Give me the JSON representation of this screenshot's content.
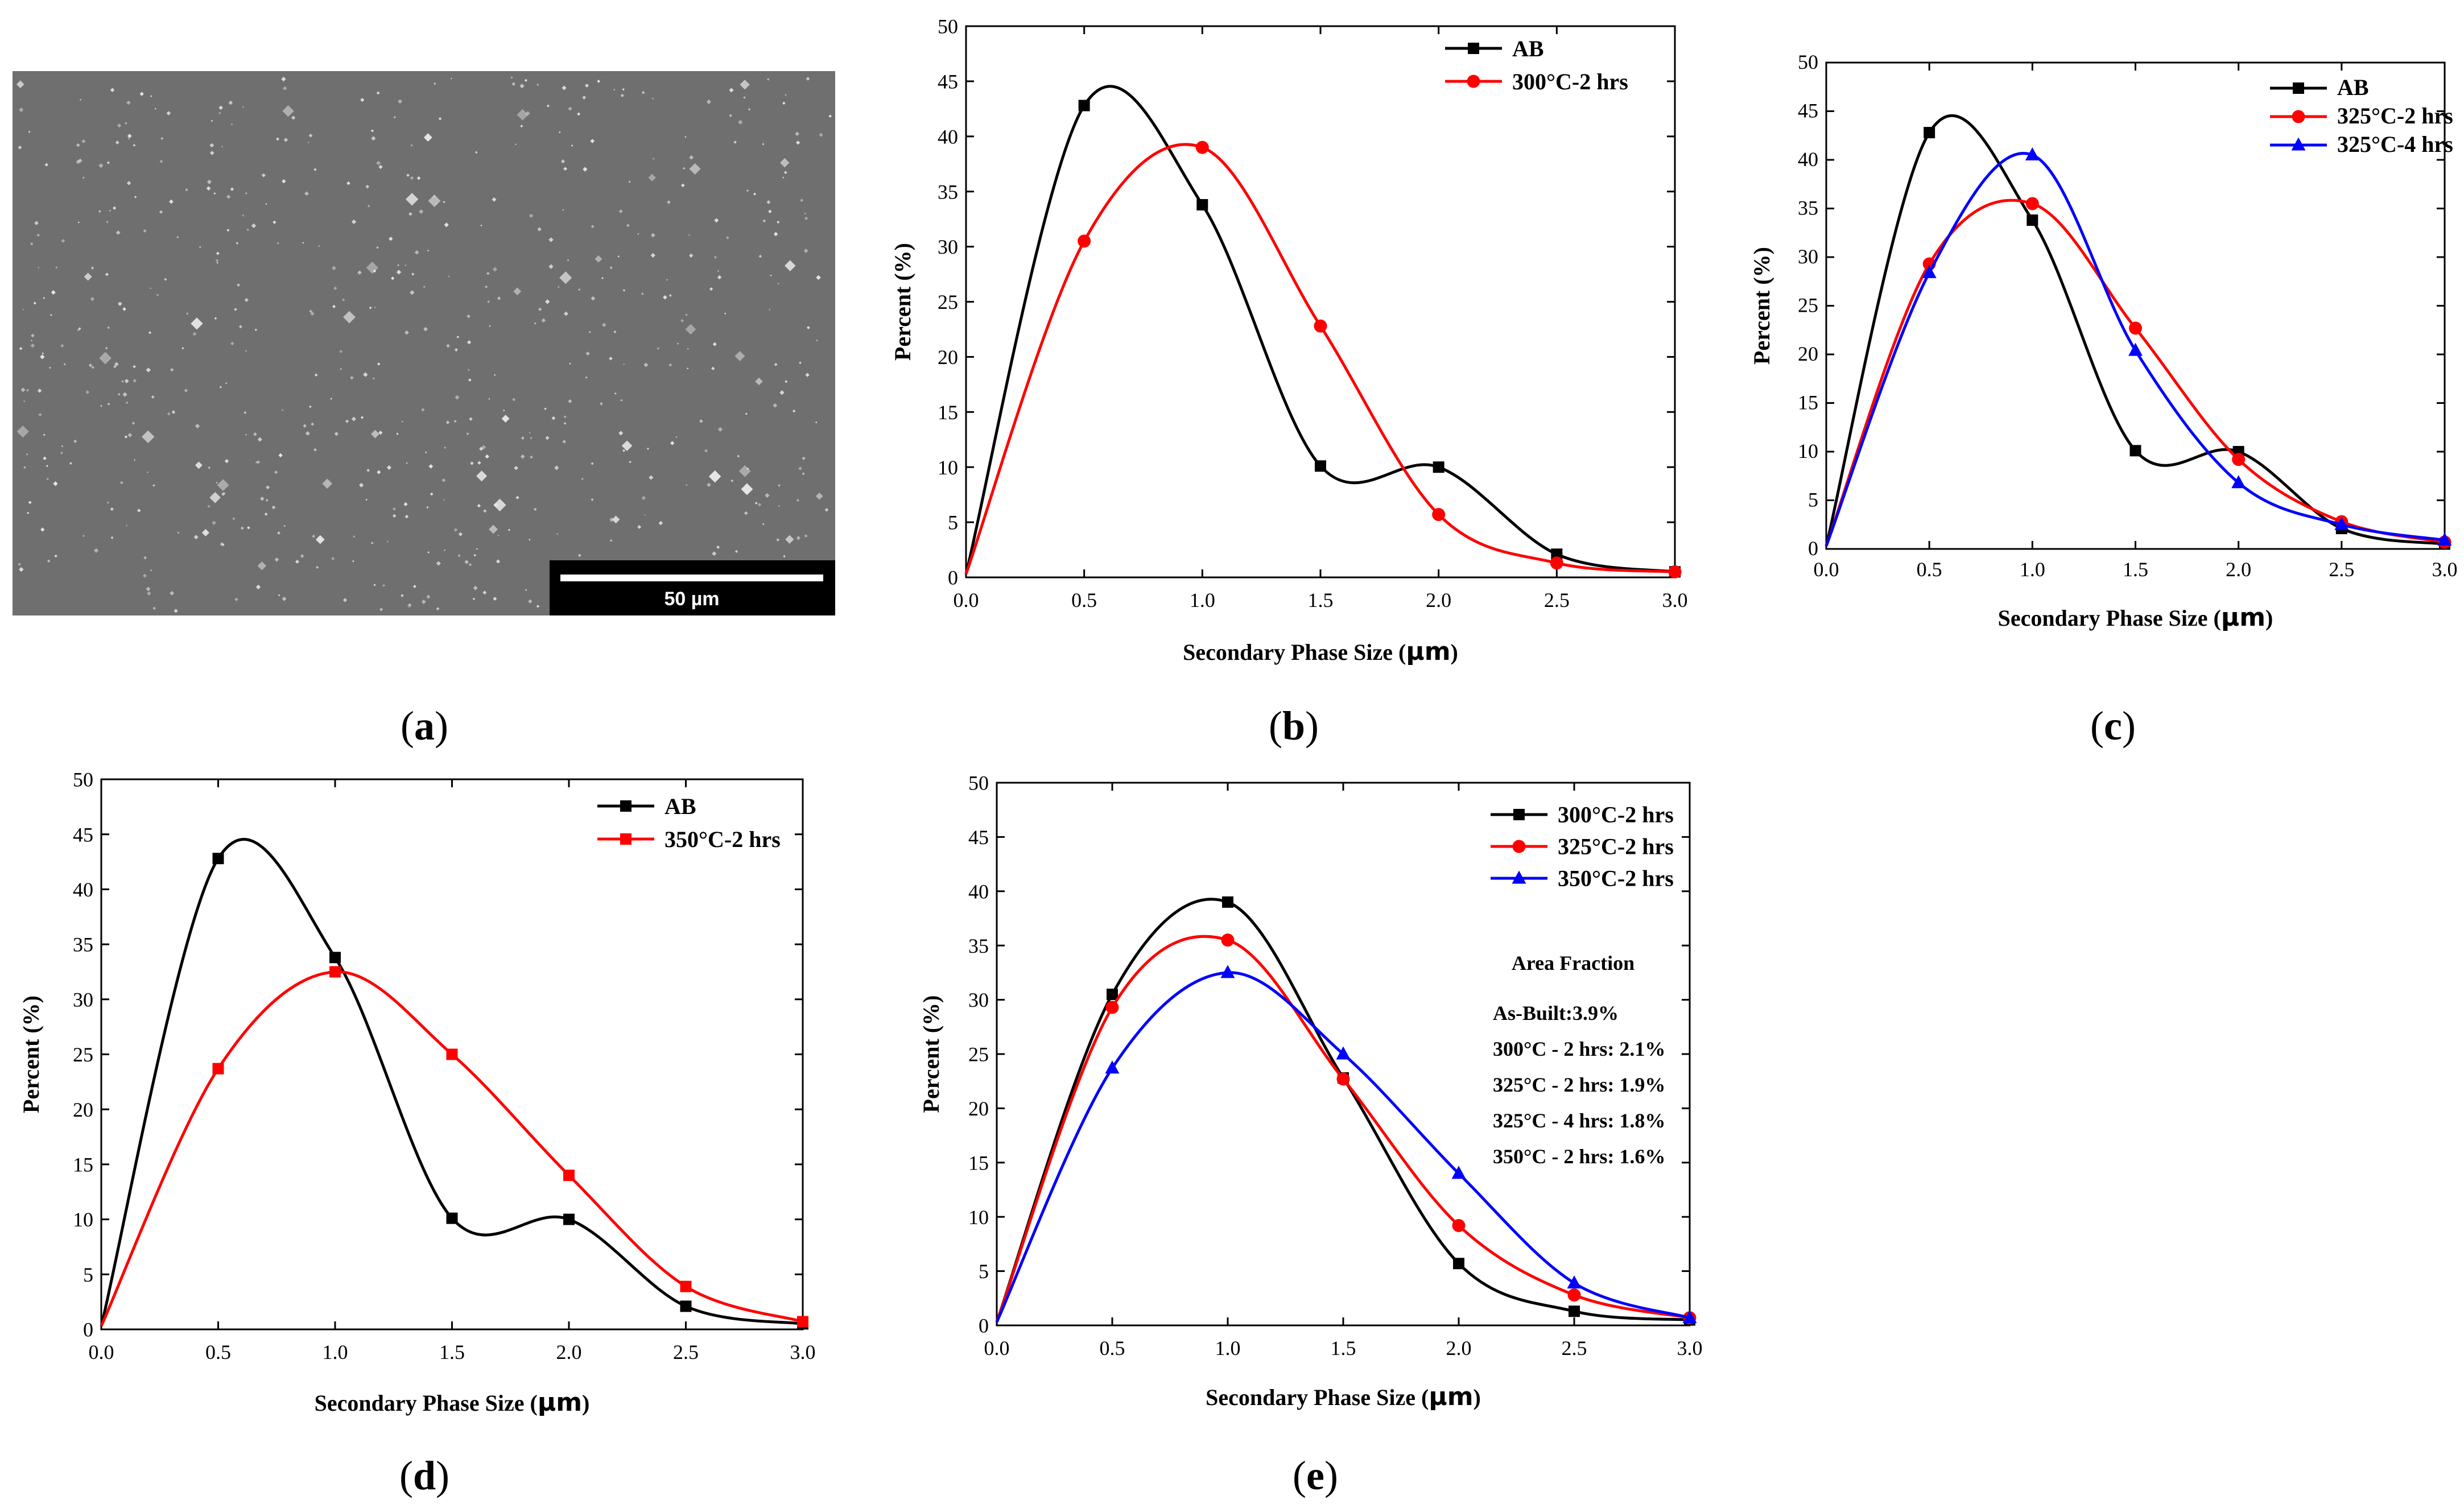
{
  "figure": {
    "panel_labels": [
      "a",
      "b",
      "c",
      "d",
      "e"
    ],
    "micrograph": {
      "scale_bar_label": "50 µm",
      "background_color": "#6f6f6f",
      "particle_color": "#e6e6e6"
    }
  },
  "chart_data": [
    {
      "id": "b",
      "type": "line",
      "xlabel": "Secondary Phase Size (",
      "xlabel_unit": "µm",
      "xlabel_end": ")",
      "ylabel": "Percent (%)",
      "xlim": [
        0,
        3
      ],
      "ylim": [
        0,
        50
      ],
      "xticks": [
        "0.0",
        "0.5",
        "1.0",
        "1.5",
        "2.0",
        "2.5",
        "3.0"
      ],
      "yticks": [
        "0",
        "5",
        "10",
        "15",
        "20",
        "25",
        "30",
        "35",
        "40",
        "45",
        "50"
      ],
      "legend_position": "top-right",
      "series": [
        {
          "name": "AB",
          "color": "#000000",
          "marker": "square",
          "x": [
            0,
            0.5,
            1.0,
            1.5,
            2.0,
            2.5,
            3.0
          ],
          "y": [
            0.3,
            42.8,
            33.8,
            10.1,
            10.0,
            2.1,
            0.5
          ]
        },
        {
          "name": "300°C-2 hrs",
          "color": "#ff0000",
          "marker": "circle",
          "x": [
            0,
            0.5,
            1.0,
            1.5,
            2.0,
            2.5,
            3.0
          ],
          "y": [
            0.3,
            30.5,
            39.0,
            22.8,
            5.7,
            1.3,
            0.5
          ]
        }
      ]
    },
    {
      "id": "c",
      "type": "line",
      "xlabel": "Secondary Phase Size (",
      "xlabel_unit": "µm",
      "xlabel_end": ")",
      "ylabel": "Percent (%)",
      "xlim": [
        0,
        3
      ],
      "ylim": [
        0,
        50
      ],
      "xticks": [
        "0.0",
        "0.5",
        "1.0",
        "1.5",
        "2.0",
        "2.5",
        "3.0"
      ],
      "yticks": [
        "0",
        "5",
        "10",
        "15",
        "20",
        "25",
        "30",
        "35",
        "40",
        "45",
        "50"
      ],
      "legend_position": "top-right",
      "series": [
        {
          "name": "AB",
          "color": "#000000",
          "marker": "square",
          "x": [
            0,
            0.5,
            1.0,
            1.5,
            2.0,
            2.5,
            3.0
          ],
          "y": [
            0.3,
            42.8,
            33.8,
            10.1,
            10.0,
            2.1,
            0.5
          ]
        },
        {
          "name": "325°C-2 hrs",
          "color": "#ff0000",
          "marker": "circle",
          "x": [
            0,
            0.5,
            1.0,
            1.5,
            2.0,
            2.5,
            3.0
          ],
          "y": [
            0.3,
            29.3,
            35.5,
            22.7,
            9.2,
            2.8,
            0.7
          ]
        },
        {
          "name": "325°C-4 hrs",
          "color": "#0000ff",
          "marker": "triangle",
          "x": [
            0,
            0.5,
            1.0,
            1.5,
            2.0,
            2.5,
            3.0
          ],
          "y": [
            0.3,
            28.4,
            40.5,
            20.4,
            6.8,
            2.5,
            0.9
          ]
        }
      ]
    },
    {
      "id": "d",
      "type": "line",
      "xlabel": "Secondary Phase Size (",
      "xlabel_unit": "µm",
      "xlabel_end": ")",
      "ylabel": "Percent (%)",
      "xlim": [
        0,
        3
      ],
      "ylim": [
        0,
        50
      ],
      "xticks": [
        "0.0",
        "0.5",
        "1.0",
        "1.5",
        "2.0",
        "2.5",
        "3.0"
      ],
      "yticks": [
        "0",
        "5",
        "10",
        "15",
        "20",
        "25",
        "30",
        "35",
        "40",
        "45",
        "50"
      ],
      "legend_position": "top-right",
      "series": [
        {
          "name": "AB",
          "color": "#000000",
          "marker": "square",
          "x": [
            0,
            0.5,
            1.0,
            1.5,
            2.0,
            2.5,
            3.0
          ],
          "y": [
            0.3,
            42.8,
            33.8,
            10.1,
            10.0,
            2.1,
            0.5
          ]
        },
        {
          "name": "350°C-2 hrs",
          "color": "#ff0000",
          "marker": "square",
          "x": [
            0,
            0.5,
            1.0,
            1.5,
            2.0,
            2.5,
            3.0
          ],
          "y": [
            0.3,
            23.7,
            32.5,
            25.0,
            14.0,
            3.9,
            0.7
          ]
        }
      ]
    },
    {
      "id": "e",
      "type": "line",
      "xlabel": "Secondary Phase Size (",
      "xlabel_unit": "µm",
      "xlabel_end": ")",
      "ylabel": "Percent (%)",
      "xlim": [
        0,
        3
      ],
      "ylim": [
        0,
        50
      ],
      "xticks": [
        "0.0",
        "0.5",
        "1.0",
        "1.5",
        "2.0",
        "2.5",
        "3.0"
      ],
      "yticks": [
        "0",
        "5",
        "10",
        "15",
        "20",
        "25",
        "30",
        "35",
        "40",
        "45",
        "50"
      ],
      "legend_position": "top-right",
      "annotation_title": "Area Fraction",
      "annotations": [
        "As-Built:3.9%",
        "300°C - 2 hrs: 2.1%",
        "325°C - 2 hrs: 1.9%",
        "325°C - 4 hrs: 1.8%",
        "350°C - 2 hrs: 1.6%"
      ],
      "series": [
        {
          "name": "300°C-2 hrs",
          "color": "#000000",
          "marker": "square",
          "x": [
            0,
            0.5,
            1.0,
            1.5,
            2.0,
            2.5,
            3.0
          ],
          "y": [
            0.3,
            30.5,
            39.0,
            22.8,
            5.7,
            1.3,
            0.5
          ]
        },
        {
          "name": "325°C-2 hrs",
          "color": "#ff0000",
          "marker": "circle",
          "x": [
            0,
            0.5,
            1.0,
            1.5,
            2.0,
            2.5,
            3.0
          ],
          "y": [
            0.3,
            29.3,
            35.5,
            22.7,
            9.2,
            2.8,
            0.7
          ]
        },
        {
          "name": "350°C-2 hrs",
          "color": "#0000ff",
          "marker": "triangle",
          "x": [
            0,
            0.5,
            1.0,
            1.5,
            2.0,
            2.5,
            3.0
          ],
          "y": [
            0.3,
            23.7,
            32.5,
            25.0,
            14.0,
            3.9,
            0.7
          ]
        }
      ]
    }
  ]
}
